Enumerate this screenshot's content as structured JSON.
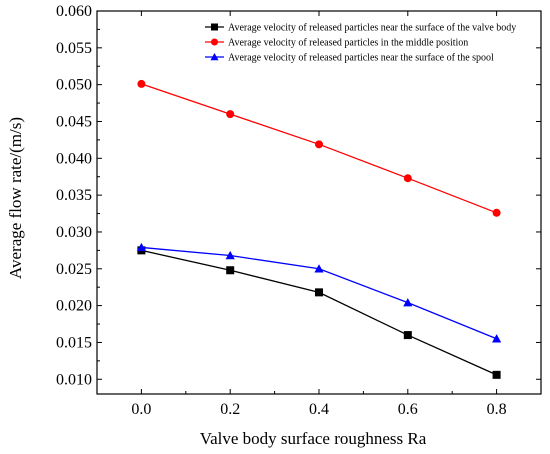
{
  "chart_data": {
    "type": "line",
    "title": "",
    "xlabel": "Valve body surface roughness Ra",
    "ylabel": "Average flow rate/(m/s)",
    "x": [
      0.0,
      0.2,
      0.4,
      0.6,
      0.8
    ],
    "xlim": [
      -0.1,
      0.9
    ],
    "ylim": [
      0.008,
      0.06
    ],
    "x_ticks": [
      "0.0",
      "0.2",
      "0.4",
      "0.6",
      "0.8"
    ],
    "y_ticks": [
      "0.010",
      "0.015",
      "0.020",
      "0.025",
      "0.030",
      "0.035",
      "0.040",
      "0.045",
      "0.050",
      "0.055",
      "0.060"
    ],
    "x_tick_values": [
      0.0,
      0.2,
      0.4,
      0.6,
      0.8
    ],
    "y_tick_values": [
      0.01,
      0.015,
      0.02,
      0.025,
      0.03,
      0.035,
      0.04,
      0.045,
      0.05,
      0.055,
      0.06
    ],
    "grid": false,
    "legend_position": "top-right",
    "series": [
      {
        "name": "Average velocity of released particles near the surface of the valve body",
        "values": [
          0.0275,
          0.0248,
          0.0218,
          0.016,
          0.0106
        ],
        "color": "#000000",
        "marker": "square"
      },
      {
        "name": "Average velocity of released particles in the middle position",
        "values": [
          0.0501,
          0.046,
          0.0419,
          0.0373,
          0.0326
        ],
        "color": "#ff0000",
        "marker": "circle"
      },
      {
        "name": "Average velocity of released particles near the surface of the spool",
        "values": [
          0.0279,
          0.0268,
          0.025,
          0.0204,
          0.0155
        ],
        "color": "#0000ff",
        "marker": "triangle"
      }
    ]
  }
}
